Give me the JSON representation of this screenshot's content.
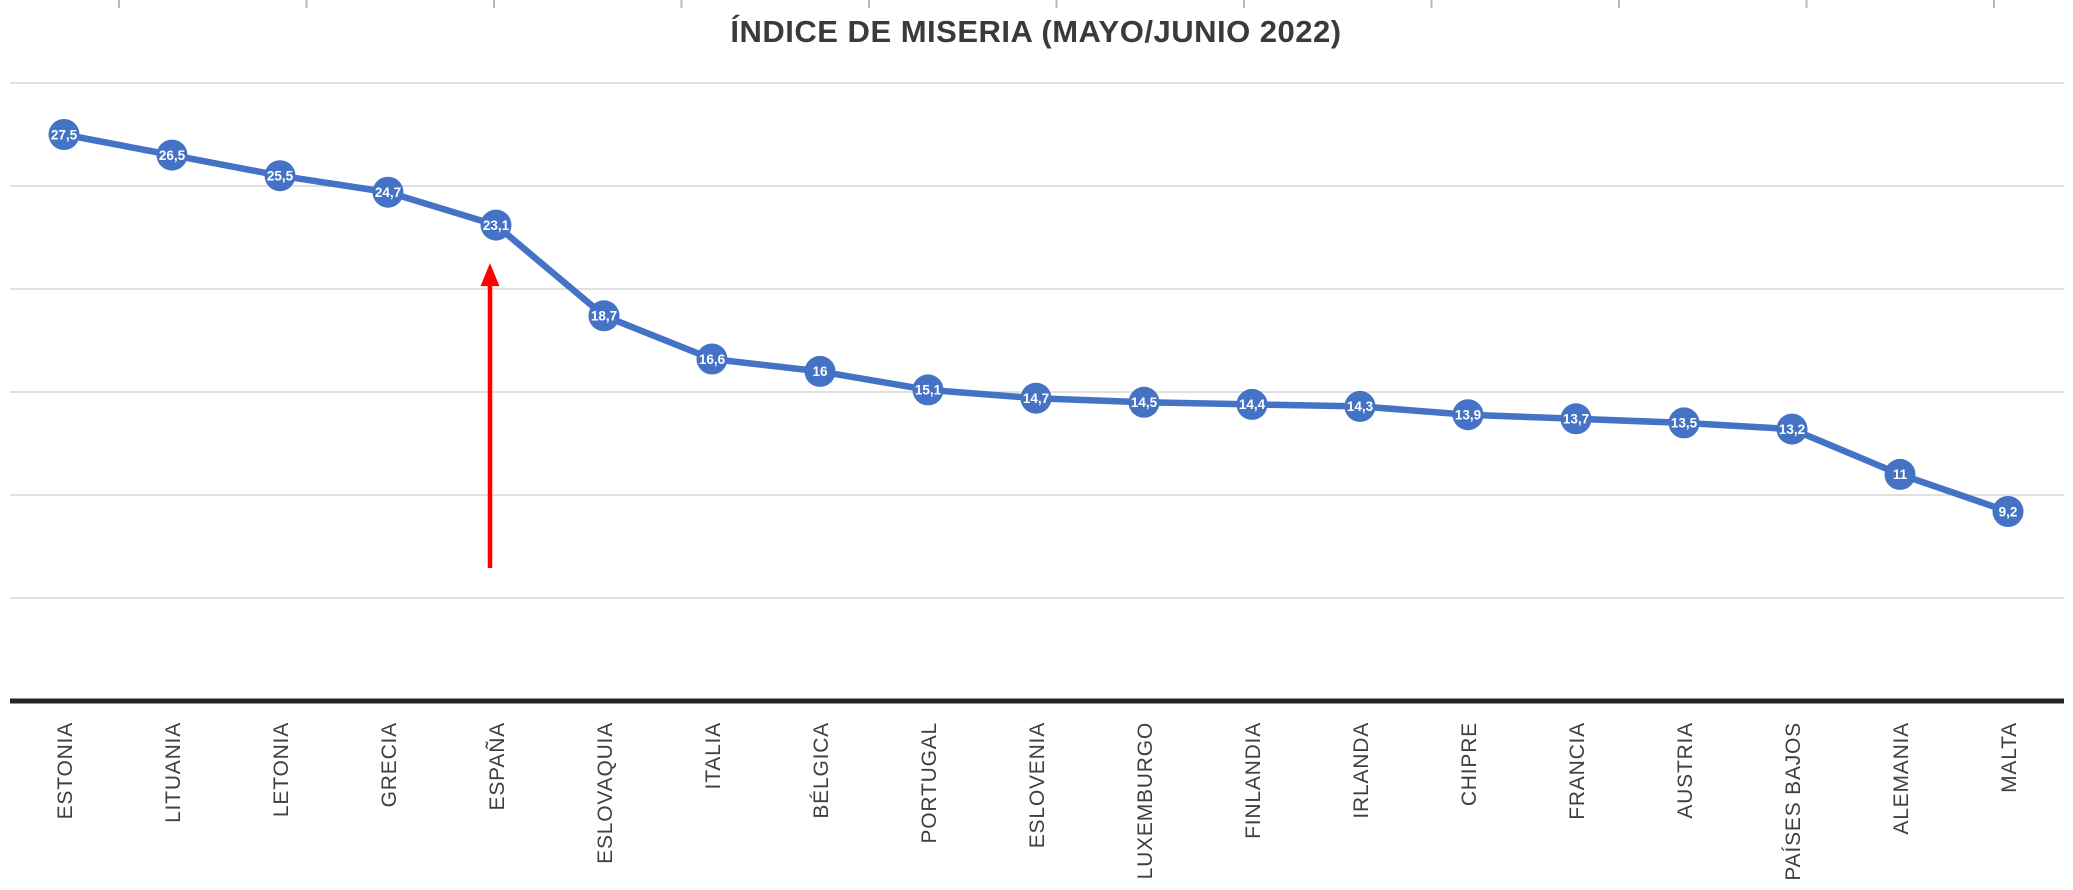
{
  "chart_data": {
    "type": "line",
    "title": "ÍNDICE DE MISERIA (MAYO/JUNIO 2022)",
    "categories": [
      "ESTONIA",
      "LITUANIA",
      "LETONIA",
      "GRECIA",
      "ESPAÑA",
      "ESLOVAQUIA",
      "ITALIA",
      "BÉLGICA",
      "PORTUGAL",
      "ESLOVENIA",
      "LUXEMBURGO",
      "FINLANDIA",
      "IRLANDA",
      "CHIPRE",
      "FRANCIA",
      "AUSTRIA",
      "PAÍSES BAJOS",
      "ALEMANIA",
      "MALTA"
    ],
    "values": [
      27.5,
      26.5,
      25.5,
      24.7,
      23.1,
      18.7,
      16.6,
      16,
      15.1,
      14.7,
      14.5,
      14.4,
      14.3,
      13.9,
      13.7,
      13.5,
      13.2,
      11,
      9.2
    ],
    "data_labels": [
      "27,5",
      "26,5",
      "25,5",
      "24,7",
      "23,1",
      "18,7",
      "16,6",
      "16",
      "15,1",
      "14,7",
      "14,5",
      "14,4",
      "14,3",
      "13,9",
      "13,7",
      "13,5",
      "13,2",
      "11",
      "9,2"
    ],
    "xlabel": "",
    "ylabel": "",
    "ylim": [
      0,
      30
    ],
    "gridline_step": 5,
    "grid": "horizontal-major",
    "legend": "none",
    "y_axis_visible": false,
    "x_axis_label_rotation": -90,
    "marker_shape": "circle",
    "data_label_position": "center",
    "decimal_separator": ",",
    "annotation": {
      "type": "arrow-up",
      "target_category": "ESPAÑA",
      "target_index": 4
    }
  },
  "colors": {
    "series": "#4472C4",
    "marker_fill": "#4472C4",
    "marker_label": "#FFFFFF",
    "gridline": "#D6D6D6",
    "axis_line": "#262626",
    "title": "#3A3A3A",
    "category_label": "#3F3F3F",
    "arrow": "#FF0000",
    "worksheet_tick": "#B8B8B8",
    "background": "#FFFFFF"
  }
}
